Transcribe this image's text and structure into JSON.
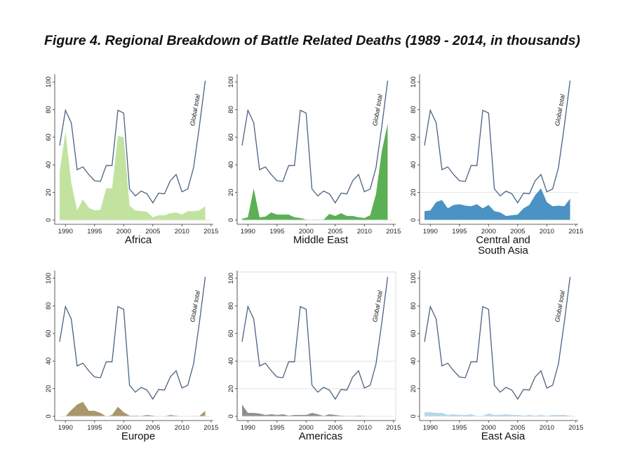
{
  "title": "Figure 4. Regional Breakdown of Battle Related Deaths (1989 - 2014, in thousands)",
  "chart_data": {
    "type": "area",
    "years": [
      1989,
      1990,
      1991,
      1992,
      1993,
      1994,
      1995,
      1996,
      1997,
      1998,
      1999,
      2000,
      2001,
      2002,
      2003,
      2004,
      2005,
      2006,
      2007,
      2008,
      2009,
      2010,
      2011,
      2012,
      2013,
      2014
    ],
    "global_total": {
      "name": "Global total",
      "color": "#4a6282",
      "values": [
        54,
        79.5,
        70.5,
        36.5,
        38.5,
        33,
        28.5,
        28,
        39.5,
        39.5,
        79.5,
        77.5,
        22.5,
        17.5,
        21,
        19,
        12.5,
        19.5,
        19,
        28.5,
        33,
        20.5,
        22.5,
        38,
        68,
        101
      ]
    },
    "xticks": [
      1990,
      1995,
      2000,
      2005,
      2010,
      2015
    ],
    "yticks": [
      0,
      20,
      40,
      60,
      80,
      100
    ],
    "xlim": [
      1989,
      2015
    ],
    "ylim": [
      0,
      100
    ],
    "panels": [
      {
        "title": [
          "Africa"
        ],
        "color": "#c2e3a0",
        "gridlines": [],
        "values": [
          35,
          64,
          27,
          7,
          15,
          9,
          7,
          7.5,
          23,
          23,
          61,
          60,
          10.5,
          7,
          6.5,
          6,
          2,
          3.5,
          3.5,
          5,
          5.5,
          4,
          6.5,
          6.5,
          7,
          10
        ]
      },
      {
        "title": [
          "Middle East"
        ],
        "color": "#5bb055",
        "gridlines": [],
        "values": [
          1,
          2,
          23,
          2,
          2.5,
          5.5,
          4,
          4,
          4,
          2,
          1.5,
          0.3,
          0.3,
          0.3,
          0.3,
          4.5,
          3,
          5,
          3,
          3,
          2,
          1.5,
          3.5,
          19,
          50,
          70
        ]
      },
      {
        "title": [
          "Central and",
          "South Asia"
        ],
        "color": "#4a93c4",
        "gridlines": [
          20
        ],
        "values": [
          6.5,
          7,
          13,
          14.5,
          8.5,
          11,
          11.5,
          10.5,
          10,
          11.5,
          8.5,
          11,
          6.5,
          5.5,
          3,
          3.5,
          4,
          8.5,
          11,
          18,
          23,
          13,
          10,
          10.5,
          10,
          15.5
        ]
      },
      {
        "title": [
          "Europe"
        ],
        "color": "#a8976a",
        "gridlines": [],
        "values": [
          0,
          0,
          4.5,
          8.5,
          10.5,
          4,
          4,
          2.5,
          0,
          1,
          7,
          3,
          0.5,
          0.5,
          0.3,
          1,
          0.5,
          0,
          0,
          1,
          0.5,
          0,
          0,
          0.3,
          0.3,
          4
        ]
      },
      {
        "title": [
          "Americas"
        ],
        "color": "#8e8e8e",
        "gridlines": [
          20,
          40
        ],
        "values": [
          8.5,
          2.5,
          2.5,
          2,
          1,
          1.5,
          1,
          1.5,
          0.5,
          1,
          1,
          1,
          2.5,
          1.5,
          0.3,
          1.5,
          1,
          0.5,
          0.3,
          0.3,
          0.5,
          0.3,
          0.2,
          0.2,
          0.1,
          0.1
        ]
      },
      {
        "title": [
          "East Asia"
        ],
        "color": "#b3d6ea",
        "gridlines": [],
        "values": [
          3,
          3,
          2.5,
          2.5,
          1,
          1.5,
          1,
          1,
          1.5,
          0.3,
          0.3,
          2,
          1,
          1,
          1.5,
          1,
          1,
          0.5,
          1,
          0.5,
          1,
          0.3,
          1,
          1,
          1,
          0.5
        ]
      }
    ]
  }
}
